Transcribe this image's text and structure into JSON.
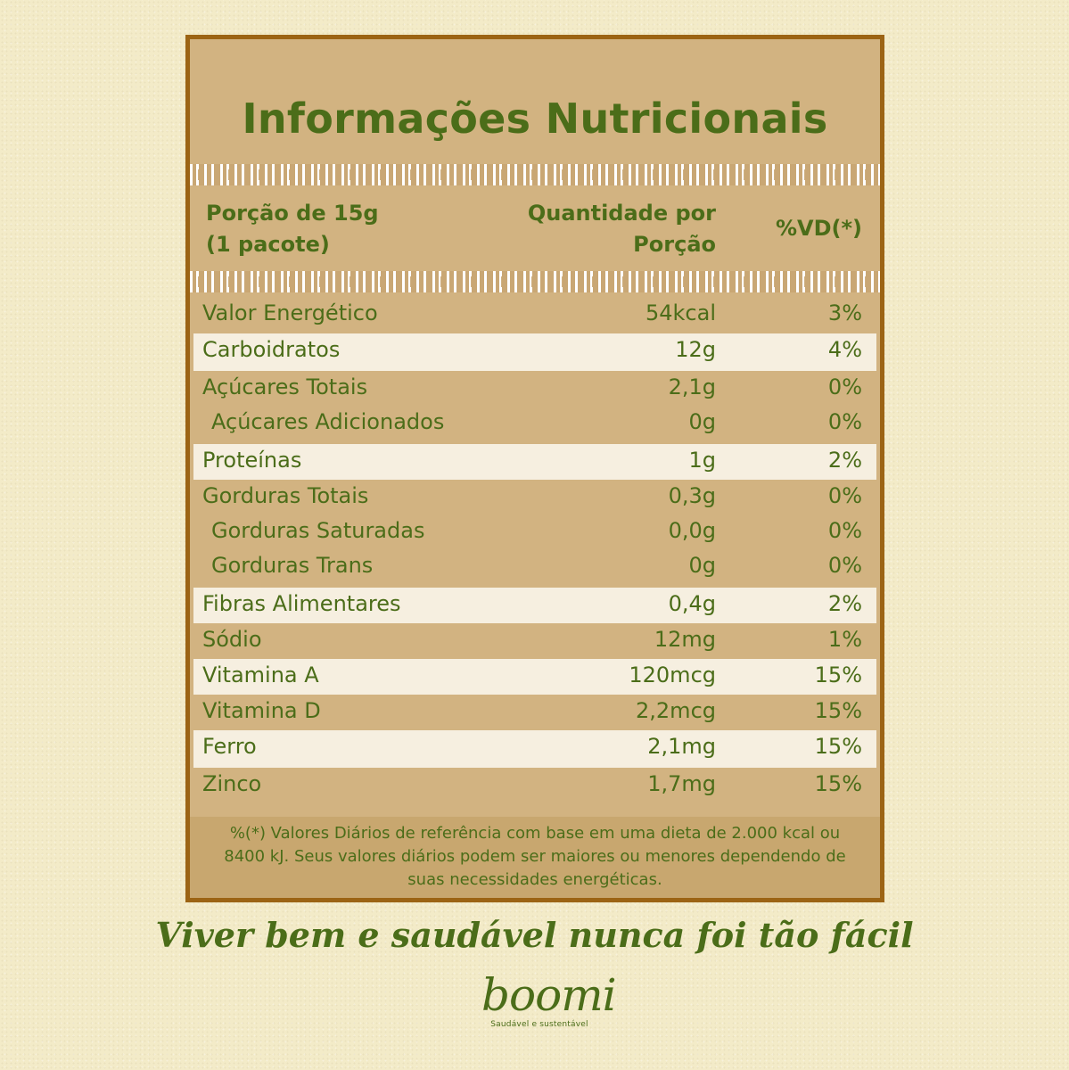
{
  "title": "Informações Nutricionais",
  "header": {
    "portion_line1": "Porção de 15g",
    "portion_line2": "(1 pacote)",
    "qty_line1": "Quantidade por",
    "qty_line2": "Porção",
    "vd": "%VD(*)"
  },
  "rows": [
    {
      "lines": [
        {
          "name": "Valor Energético",
          "amount": "54kcal",
          "pct": "3%",
          "sub": false
        }
      ],
      "light": false
    },
    {
      "lines": [
        {
          "name": "Carboidratos",
          "amount": "12g",
          "pct": "4%",
          "sub": false
        }
      ],
      "light": true
    },
    {
      "lines": [
        {
          "name": "Açúcares Totais",
          "amount": "2,1g",
          "pct": "0%",
          "sub": false
        },
        {
          "name": "Açúcares Adicionados",
          "amount": "0g",
          "pct": "0%",
          "sub": true
        }
      ],
      "light": false
    },
    {
      "lines": [
        {
          "name": "Proteínas",
          "amount": "1g",
          "pct": "2%",
          "sub": false
        }
      ],
      "light": true
    },
    {
      "lines": [
        {
          "name": "Gorduras Totais",
          "amount": "0,3g",
          "pct": "0%",
          "sub": false
        },
        {
          "name": "Gorduras Saturadas",
          "amount": "0,0g",
          "pct": "0%",
          "sub": true
        },
        {
          "name": "Gorduras Trans",
          "amount": "0g",
          "pct": "0%",
          "sub": true
        }
      ],
      "light": false
    },
    {
      "lines": [
        {
          "name": "Fibras Alimentares",
          "amount": "0,4g",
          "pct": "2%",
          "sub": false
        }
      ],
      "light": true
    },
    {
      "lines": [
        {
          "name": "Sódio",
          "amount": "12mg",
          "pct": "1%",
          "sub": false
        }
      ],
      "light": false
    },
    {
      "lines": [
        {
          "name": "Vitamina A",
          "amount": "120mcg",
          "pct": "15%",
          "sub": false
        }
      ],
      "light": true
    },
    {
      "lines": [
        {
          "name": "Vitamina D",
          "amount": "2,2mcg",
          "pct": "15%",
          "sub": false
        }
      ],
      "light": false
    },
    {
      "lines": [
        {
          "name": "Ferro",
          "amount": "2,1mg",
          "pct": "15%",
          "sub": false
        }
      ],
      "light": true
    },
    {
      "lines": [
        {
          "name": "Zinco",
          "amount": "1,7mg",
          "pct": "15%",
          "sub": false
        }
      ],
      "light": false
    }
  ],
  "footnote": {
    "line1": "%(*) Valores Diários de referência com base em uma dieta de 2.000 kcal ou",
    "line2": "8400 kJ. Seus valores diários podem ser maiores ou menores dependendo de",
    "line3": "suas necessidades energéticas."
  },
  "slogan": "Viver bem e saudável nunca foi tão fácil",
  "logo": {
    "brand": "boomi",
    "tagline": "Saudável e sustentável"
  },
  "colors": {
    "background": "#f3ebc8",
    "panel": "#d2b381",
    "border": "#9c6414",
    "text_green": "#4b6d19",
    "row_light": "#f6efe0"
  }
}
